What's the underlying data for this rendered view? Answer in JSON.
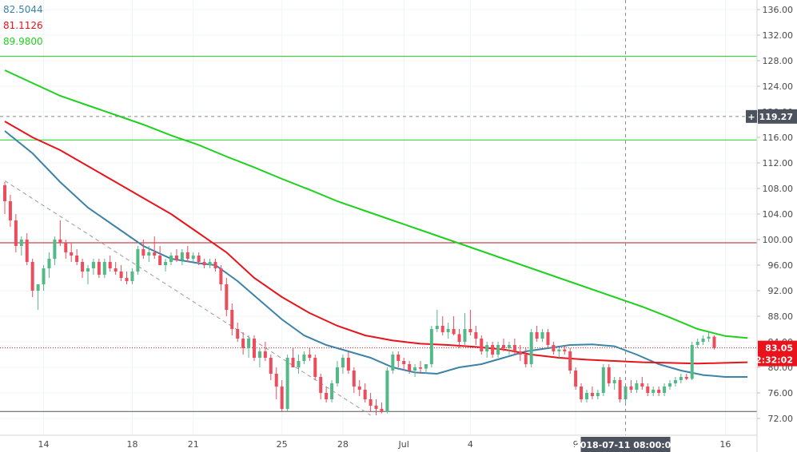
{
  "legend": [
    {
      "label": "82.5044",
      "color": "#3b83a8"
    },
    {
      "label": "81.1126",
      "color": "#e8131b"
    },
    {
      "label": "89.9800",
      "color": "#1ed11e"
    }
  ],
  "chart_data": {
    "type": "candlestick",
    "title": "",
    "ylim": [
      70,
      137
    ],
    "y_ticks": [
      "72.00",
      "76.00",
      "80.00",
      "84.00",
      "88.00",
      "92.00",
      "96.00",
      "100.00",
      "104.00",
      "108.00",
      "112.00",
      "116.00",
      "120.00",
      "124.00",
      "128.00",
      "132.00",
      "136.00"
    ],
    "y_tick_values": [
      72,
      76,
      80,
      84,
      88,
      92,
      96,
      100,
      104,
      108,
      112,
      116,
      120,
      124,
      128,
      132,
      136
    ],
    "x_range": [
      0,
      135
    ],
    "x_ticks": [
      {
        "label": "14",
        "t": 7
      },
      {
        "label": "18",
        "t": 23
      },
      {
        "label": "21",
        "t": 34
      },
      {
        "label": "25",
        "t": 50
      },
      {
        "label": "28",
        "t": 61
      },
      {
        "label": "Jul",
        "t": 72
      },
      {
        "label": "4",
        "t": 84
      },
      {
        "label": "9",
        "t": 103
      },
      {
        "label": "16",
        "t": 130
      }
    ],
    "horizontal_lines": [
      {
        "value": 128.7,
        "color": "#1ed11e",
        "style": "solid"
      },
      {
        "value": 115.6,
        "color": "#1ed11e",
        "style": "solid"
      },
      {
        "value": 99.5,
        "color": "#c2121b",
        "style": "solid"
      },
      {
        "value": 73.1,
        "color": "#555555",
        "style": "solid"
      },
      {
        "value": 83.05,
        "color": "#e8131b",
        "style": "dotted"
      }
    ],
    "trendline": {
      "points": [
        [
          0,
          109.2
        ],
        [
          66,
          72.5
        ]
      ],
      "color": "#9a9a9a",
      "style": "dashed"
    },
    "crosshair": {
      "t": 112,
      "price_label": "119.27",
      "value": 119.27,
      "time_label": "2018-07-11 08:00:00"
    },
    "last_price": {
      "label": "83.05",
      "value": 83.05,
      "countdown": "02:32:02"
    },
    "series": [
      {
        "name": "",
        "color": "#3b83a8",
        "points": [
          [
            0,
            117
          ],
          [
            5,
            113.5
          ],
          [
            10,
            109
          ],
          [
            15,
            105
          ],
          [
            20,
            102
          ],
          [
            25,
            99
          ],
          [
            30,
            97
          ],
          [
            35,
            96.3
          ],
          [
            38,
            96
          ],
          [
            42,
            93.5
          ],
          [
            46,
            90.5
          ],
          [
            50,
            87.5
          ],
          [
            54,
            85
          ],
          [
            58,
            83.5
          ],
          [
            62,
            82.5
          ],
          [
            66,
            81.5
          ],
          [
            70,
            80
          ],
          [
            74,
            79.2
          ],
          [
            78,
            79
          ],
          [
            82,
            80
          ],
          [
            86,
            80.5
          ],
          [
            90,
            81.5
          ],
          [
            94,
            82.5
          ],
          [
            98,
            83
          ],
          [
            102,
            83.5
          ],
          [
            106,
            83.6
          ],
          [
            110,
            83.3
          ],
          [
            114,
            82
          ],
          [
            118,
            80.5
          ],
          [
            122,
            79.5
          ],
          [
            126,
            78.8
          ],
          [
            130,
            78.5
          ],
          [
            134,
            78.5
          ]
        ]
      },
      {
        "name": "",
        "color": "#e8131b",
        "points": [
          [
            0,
            118.5
          ],
          [
            5,
            116
          ],
          [
            10,
            114
          ],
          [
            15,
            111.5
          ],
          [
            20,
            109
          ],
          [
            25,
            106.5
          ],
          [
            30,
            104
          ],
          [
            35,
            101
          ],
          [
            40,
            98
          ],
          [
            45,
            94
          ],
          [
            50,
            91
          ],
          [
            55,
            88.5
          ],
          [
            60,
            86.5
          ],
          [
            65,
            85
          ],
          [
            70,
            84.2
          ],
          [
            75,
            83.7
          ],
          [
            80,
            83.5
          ],
          [
            85,
            83.2
          ],
          [
            90,
            82.8
          ],
          [
            95,
            82
          ],
          [
            100,
            81.5
          ],
          [
            105,
            81.2
          ],
          [
            110,
            81
          ],
          [
            115,
            80.8
          ],
          [
            120,
            80.7
          ],
          [
            125,
            80.6
          ],
          [
            130,
            80.7
          ],
          [
            134,
            80.8
          ]
        ]
      },
      {
        "name": "",
        "color": "#1ed11e",
        "points": [
          [
            0,
            126.5
          ],
          [
            5,
            124.5
          ],
          [
            10,
            122.5
          ],
          [
            15,
            121
          ],
          [
            20,
            119.5
          ],
          [
            25,
            118
          ],
          [
            30,
            116.3
          ],
          [
            35,
            114.8
          ],
          [
            40,
            113
          ],
          [
            45,
            111.3
          ],
          [
            50,
            109.5
          ],
          [
            55,
            107.8
          ],
          [
            60,
            106
          ],
          [
            65,
            104.5
          ],
          [
            70,
            103
          ],
          [
            75,
            101.5
          ],
          [
            80,
            100
          ],
          [
            85,
            98.5
          ],
          [
            90,
            97
          ],
          [
            95,
            95.5
          ],
          [
            100,
            94
          ],
          [
            105,
            92.5
          ],
          [
            110,
            91
          ],
          [
            115,
            89.5
          ],
          [
            120,
            87.8
          ],
          [
            125,
            86
          ],
          [
            130,
            84.9
          ],
          [
            134,
            84.6
          ]
        ]
      }
    ],
    "candles": [
      [
        0,
        108.5,
        109,
        104,
        106
      ],
      [
        1,
        106,
        107,
        102,
        103
      ],
      [
        2,
        103,
        104,
        98,
        99
      ],
      [
        3,
        99,
        100.5,
        97.5,
        100
      ],
      [
        4,
        100,
        101,
        96,
        96.5
      ],
      [
        5,
        96.5,
        97,
        91,
        92
      ],
      [
        6,
        92,
        93,
        89,
        93
      ],
      [
        7,
        93,
        96,
        92,
        95.5
      ],
      [
        8,
        95.5,
        98,
        94,
        97
      ],
      [
        9,
        97,
        100.5,
        96,
        100
      ],
      [
        10,
        100,
        103,
        99,
        99.5
      ],
      [
        11,
        99.5,
        100,
        97,
        98
      ],
      [
        12,
        98,
        99.5,
        96.5,
        97.5
      ],
      [
        13,
        97.5,
        98.5,
        96,
        96.5
      ],
      [
        14,
        96.5,
        97,
        94,
        95
      ],
      [
        15,
        95,
        96,
        93,
        95.5
      ],
      [
        16,
        95.5,
        97,
        94.5,
        96.5
      ],
      [
        17,
        96.5,
        97,
        94,
        94.5
      ],
      [
        18,
        94.5,
        97,
        94,
        96.5
      ],
      [
        19,
        96.5,
        97.5,
        95,
        95.5
      ],
      [
        20,
        95.5,
        96.5,
        94.5,
        95
      ],
      [
        21,
        95,
        96,
        93.5,
        94
      ],
      [
        22,
        94,
        95,
        93,
        93.5
      ],
      [
        23,
        93.5,
        95.5,
        93,
        95
      ],
      [
        24,
        95,
        99,
        94.5,
        98.5
      ],
      [
        25,
        98.5,
        100,
        97,
        97.5
      ],
      [
        26,
        97.5,
        99,
        96.5,
        98
      ],
      [
        27,
        98,
        100.5,
        97,
        97.5
      ],
      [
        28,
        97.5,
        99,
        96,
        96
      ],
      [
        29,
        96,
        97,
        95,
        96.5
      ],
      [
        30,
        96.5,
        98,
        96,
        97.5
      ],
      [
        31,
        97.5,
        98.5,
        96.5,
        96.8
      ],
      [
        32,
        96.8,
        98.5,
        96,
        98
      ],
      [
        33,
        98,
        99,
        96.5,
        97
      ],
      [
        34,
        97,
        98,
        96.5,
        97.5
      ],
      [
        35,
        97.5,
        98,
        96,
        96.5
      ],
      [
        36,
        96.5,
        97,
        95.5,
        96
      ],
      [
        37,
        96,
        97,
        95.5,
        96.5
      ],
      [
        38,
        96.5,
        97,
        95,
        95.5
      ],
      [
        39,
        95.5,
        96,
        92,
        93
      ],
      [
        40,
        93,
        94,
        88,
        89
      ],
      [
        41,
        89,
        90,
        85,
        86
      ],
      [
        42,
        86,
        87,
        84,
        84.5
      ],
      [
        43,
        84.5,
        85.5,
        82,
        83
      ],
      [
        44,
        83,
        85,
        81.5,
        84.5
      ],
      [
        45,
        84.5,
        85,
        81,
        81.5
      ],
      [
        46,
        81.5,
        83,
        80,
        82.5
      ],
      [
        47,
        82.5,
        84,
        81,
        81.5
      ],
      [
        48,
        81.5,
        82,
        78,
        79
      ],
      [
        49,
        79,
        80,
        75,
        77
      ],
      [
        50,
        77,
        78,
        73,
        73.5
      ],
      [
        51,
        73.5,
        82,
        73,
        81.5
      ],
      [
        52,
        81.5,
        83,
        80,
        80
      ],
      [
        53,
        80,
        82,
        79,
        81
      ],
      [
        54,
        81,
        82.5,
        80.5,
        82
      ],
      [
        55,
        82,
        83,
        81,
        81.5
      ],
      [
        56,
        81.5,
        82,
        78,
        78.5
      ],
      [
        57,
        78.5,
        79,
        75,
        76
      ],
      [
        58,
        76,
        77,
        74.5,
        75
      ],
      [
        59,
        75,
        78,
        74.5,
        77.5
      ],
      [
        60,
        77.5,
        81,
        77,
        80
      ],
      [
        61,
        80,
        82,
        79,
        81.5
      ],
      [
        62,
        81.5,
        82.5,
        79,
        79.5
      ],
      [
        63,
        79.5,
        80,
        76,
        77
      ],
      [
        64,
        77,
        78,
        75.5,
        76.5
      ],
      [
        65,
        76.5,
        77.5,
        74.5,
        75
      ],
      [
        66,
        75,
        76,
        73,
        74
      ],
      [
        67,
        74,
        75,
        72.5,
        73.5
      ],
      [
        68,
        73.5,
        74.5,
        72.8,
        73
      ],
      [
        69,
        73,
        80,
        72.8,
        79.5
      ],
      [
        70,
        79.5,
        82.5,
        79,
        82
      ],
      [
        71,
        82,
        82.5,
        80,
        81
      ],
      [
        72,
        81,
        81.5,
        79.5,
        80.5
      ],
      [
        73,
        80.5,
        81,
        79,
        79.5
      ],
      [
        74,
        79.5,
        80.5,
        78.5,
        80
      ],
      [
        75,
        80,
        81,
        79,
        79.8
      ],
      [
        76,
        79.8,
        80.5,
        79,
        80.5
      ],
      [
        77,
        80.5,
        86.5,
        80,
        86
      ],
      [
        78,
        86,
        89,
        85.5,
        86.5
      ],
      [
        79,
        86.5,
        88,
        85,
        85.5
      ],
      [
        80,
        85.5,
        87,
        84.5,
        86
      ],
      [
        81,
        86,
        88,
        85,
        85.2
      ],
      [
        82,
        85.2,
        86,
        83,
        84
      ],
      [
        83,
        84,
        88.5,
        83.5,
        86
      ],
      [
        84,
        86,
        89,
        85,
        85.5
      ],
      [
        85,
        85.5,
        86.5,
        83.5,
        84.5
      ],
      [
        86,
        84.5,
        85,
        82,
        82.5
      ],
      [
        87,
        82.5,
        84,
        81.5,
        83.5
      ],
      [
        88,
        83.5,
        84,
        81.5,
        82
      ],
      [
        89,
        82,
        84,
        81.5,
        83.5
      ],
      [
        90,
        83.5,
        84.5,
        82.5,
        83
      ],
      [
        91,
        83,
        84,
        82,
        83.5
      ],
      [
        92,
        83.5,
        84.5,
        82,
        82.5
      ],
      [
        93,
        82.5,
        83.5,
        81,
        82
      ],
      [
        94,
        82,
        83,
        80,
        80.5
      ],
      [
        95,
        80.5,
        86,
        80,
        85.5
      ],
      [
        96,
        85.5,
        86.5,
        84,
        84.5
      ],
      [
        97,
        84.5,
        86,
        84,
        85.5
      ],
      [
        98,
        85.5,
        86,
        83,
        83.5
      ],
      [
        99,
        83.5,
        84,
        82,
        82.5
      ],
      [
        100,
        82.5,
        83,
        81.5,
        82.8
      ],
      [
        101,
        82.8,
        83.5,
        82,
        82.5
      ],
      [
        102,
        82.5,
        83,
        79,
        79.5
      ],
      [
        103,
        79.5,
        80,
        76.5,
        77
      ],
      [
        104,
        77,
        77.5,
        74.5,
        75
      ],
      [
        105,
        75,
        76.5,
        74.5,
        76
      ],
      [
        106,
        76,
        77,
        75,
        75.5
      ],
      [
        107,
        75.5,
        76.5,
        75,
        76
      ],
      [
        108,
        76,
        80.5,
        75.5,
        80
      ],
      [
        109,
        80,
        80.5,
        77,
        77.5
      ],
      [
        110,
        77.5,
        78.5,
        76.5,
        78
      ],
      [
        111,
        78,
        78.5,
        74.5,
        75
      ],
      [
        112,
        75,
        77.5,
        74.5,
        77
      ],
      [
        113,
        77,
        78,
        76,
        76.5
      ],
      [
        114,
        76.5,
        78,
        76,
        77.5
      ],
      [
        115,
        77.5,
        78.5,
        76.5,
        77
      ],
      [
        116,
        77,
        77.5,
        75.5,
        76
      ],
      [
        117,
        76,
        77,
        75.5,
        76.5
      ],
      [
        118,
        76.5,
        77,
        75.5,
        76
      ],
      [
        119,
        76,
        77.5,
        75.5,
        77
      ],
      [
        120,
        77,
        78,
        76.5,
        77.5
      ],
      [
        121,
        77.5,
        78.5,
        77,
        78
      ],
      [
        122,
        78,
        79,
        77.5,
        78.5
      ],
      [
        123,
        78.5,
        79,
        78,
        78.2
      ],
      [
        124,
        78.2,
        84,
        78,
        83.5
      ],
      [
        125,
        83.5,
        84.5,
        83,
        84
      ],
      [
        126,
        84,
        85,
        83.5,
        84.5
      ],
      [
        127,
        84.5,
        85.5,
        84,
        84.8
      ],
      [
        128,
        84.8,
        85,
        82.8,
        83.05
      ]
    ]
  }
}
